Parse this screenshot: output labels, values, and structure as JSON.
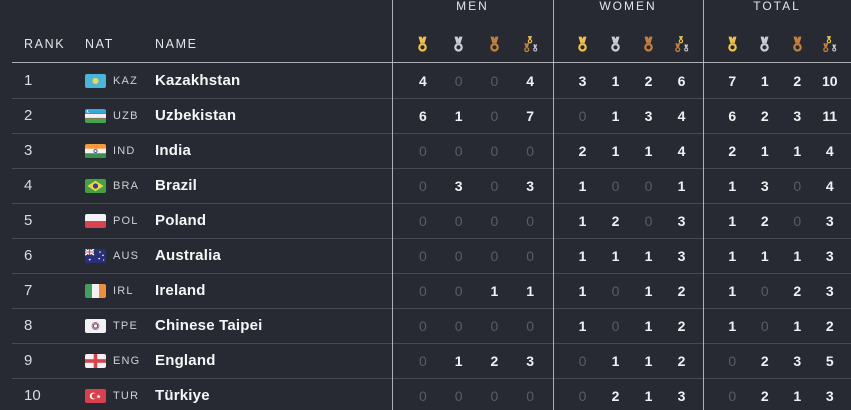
{
  "table": {
    "headers": {
      "rank": "RANK",
      "nat": "NAT",
      "name": "NAME"
    },
    "groups": [
      {
        "key": "men",
        "label": "MEN"
      },
      {
        "key": "women",
        "label": "WOMEN"
      },
      {
        "key": "total",
        "label": "TOTAL"
      }
    ],
    "medal_columns": [
      "gold-medal-icon",
      "silver-medal-icon",
      "bronze-medal-icon",
      "all-medals-icon"
    ],
    "rows": [
      {
        "rank": "1",
        "nat": "KAZ",
        "name": "Kazakhstan",
        "flag": "kaz",
        "men": [
          4,
          0,
          0,
          4
        ],
        "women": [
          3,
          1,
          2,
          6
        ],
        "total": [
          7,
          1,
          2,
          10
        ]
      },
      {
        "rank": "2",
        "nat": "UZB",
        "name": "Uzbekistan",
        "flag": "uzb",
        "men": [
          6,
          1,
          0,
          7
        ],
        "women": [
          0,
          1,
          3,
          4
        ],
        "total": [
          6,
          2,
          3,
          11
        ]
      },
      {
        "rank": "3",
        "nat": "IND",
        "name": "India",
        "flag": "ind",
        "men": [
          0,
          0,
          0,
          0
        ],
        "women": [
          2,
          1,
          1,
          4
        ],
        "total": [
          2,
          1,
          1,
          4
        ]
      },
      {
        "rank": "4",
        "nat": "BRA",
        "name": "Brazil",
        "flag": "bra",
        "men": [
          0,
          3,
          0,
          3
        ],
        "women": [
          1,
          0,
          0,
          1
        ],
        "total": [
          1,
          3,
          0,
          4
        ]
      },
      {
        "rank": "5",
        "nat": "POL",
        "name": "Poland",
        "flag": "pol",
        "men": [
          0,
          0,
          0,
          0
        ],
        "women": [
          1,
          2,
          0,
          3
        ],
        "total": [
          1,
          2,
          0,
          3
        ]
      },
      {
        "rank": "6",
        "nat": "AUS",
        "name": "Australia",
        "flag": "aus",
        "men": [
          0,
          0,
          0,
          0
        ],
        "women": [
          1,
          1,
          1,
          3
        ],
        "total": [
          1,
          1,
          1,
          3
        ]
      },
      {
        "rank": "7",
        "nat": "IRL",
        "name": "Ireland",
        "flag": "irl",
        "men": [
          0,
          0,
          1,
          1
        ],
        "women": [
          1,
          0,
          1,
          2
        ],
        "total": [
          1,
          0,
          2,
          3
        ]
      },
      {
        "rank": "8",
        "nat": "TPE",
        "name": "Chinese Taipei",
        "flag": "tpe",
        "men": [
          0,
          0,
          0,
          0
        ],
        "women": [
          1,
          0,
          1,
          2
        ],
        "total": [
          1,
          0,
          1,
          2
        ]
      },
      {
        "rank": "9",
        "nat": "ENG",
        "name": "England",
        "flag": "eng",
        "men": [
          0,
          1,
          2,
          3
        ],
        "women": [
          0,
          1,
          1,
          2
        ],
        "total": [
          0,
          2,
          3,
          5
        ]
      },
      {
        "rank": "10",
        "nat": "TUR",
        "name": "Türkiye",
        "flag": "tur",
        "men": [
          0,
          0,
          0,
          0
        ],
        "women": [
          0,
          2,
          1,
          3
        ],
        "total": [
          0,
          2,
          1,
          3
        ]
      }
    ]
  },
  "colors": {
    "background": "#272a33",
    "gold": "#edc24c",
    "silver": "#c9ced6",
    "bronze": "#c2803c",
    "section_divider": "#c3c5c9",
    "zero_text": "#575c66",
    "value_text": "#eff1f3"
  }
}
